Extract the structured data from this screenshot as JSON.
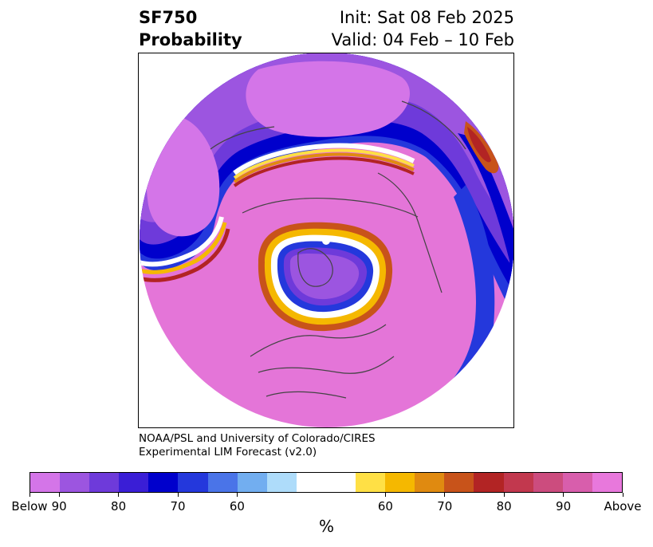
{
  "title": {
    "left_line1": "SF750",
    "left_line2": "Probability",
    "right_line1": "Init: Sat 08 Feb 2025",
    "right_line2": "Valid: 04 Feb – 10 Feb"
  },
  "credit": {
    "line1": "NOAA/PSL and University of Colorado/CIRES",
    "line2": "Experimental LIM Forecast (v2.0)"
  },
  "colorbar": {
    "colors": [
      "#d475e8",
      "#9c55e0",
      "#6e3ada",
      "#3a1ed6",
      "#0000cc",
      "#2438dc",
      "#4a74e8",
      "#72aef0",
      "#aedcfa",
      "#ffffff",
      "#ffe045",
      "#f5b800",
      "#e08a10",
      "#c8531a",
      "#b22424",
      "#c2384e",
      "#cc4c7e",
      "#d85eac",
      "#e878dc"
    ],
    "tick_labels": [
      "Below",
      "90",
      "80",
      "70",
      "60",
      "60",
      "70",
      "80",
      "90",
      "Above"
    ],
    "unit_label": "%"
  },
  "map": {
    "projection": "north-polar-stereographic",
    "center_marker": "north-pole-dot"
  }
}
